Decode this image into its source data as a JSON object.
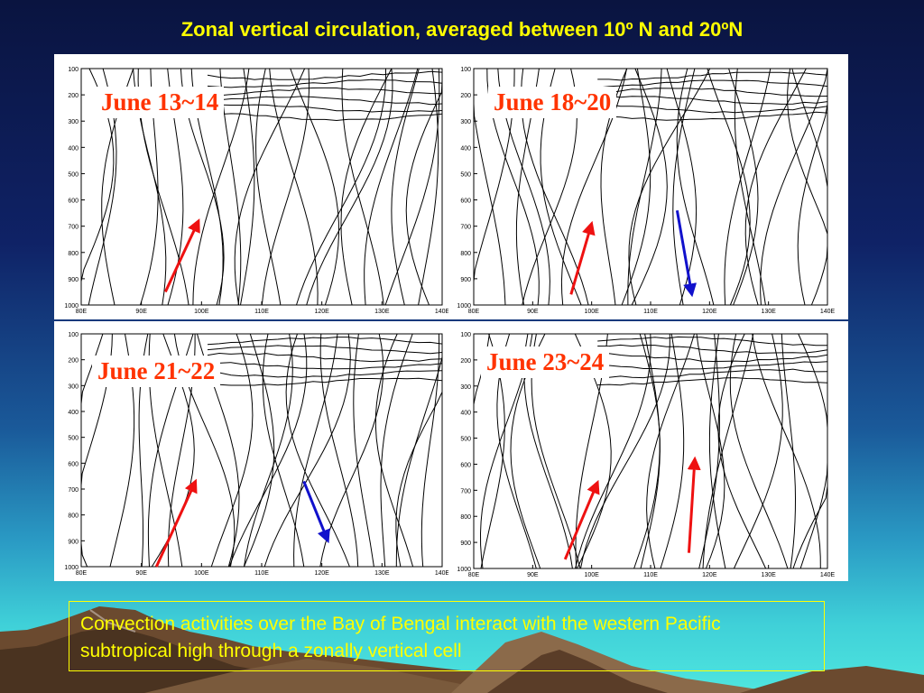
{
  "title": "Zonal vertical circulation, averaged between 10º N and 20ºN",
  "caption": "Convection activities over the Bay of Bengal interact with the western Pacific subtropical high through a zonally vertical cell",
  "axes": {
    "y_ticks": [
      "100",
      "200",
      "300",
      "400",
      "500",
      "600",
      "700",
      "800",
      "900",
      "1000"
    ],
    "x_ticks": [
      "80E",
      "90E",
      "100E",
      "110E",
      "120E",
      "130E",
      "140E"
    ]
  },
  "colors": {
    "title": "#ffff00",
    "label": "#ff3300",
    "red_arrow": "#ee1111",
    "blue_arrow": "#1111cc"
  },
  "panels": [
    {
      "label": "June 13~14",
      "arrows": [
        {
          "color": "red",
          "from": [
            94,
            950
          ],
          "to": [
            99.5,
            680
          ]
        }
      ]
    },
    {
      "label": "June 18~20",
      "arrows": [
        {
          "color": "red",
          "from": [
            96.5,
            960
          ],
          "to": [
            100,
            690
          ]
        },
        {
          "color": "blue",
          "from": [
            114.5,
            640
          ],
          "to": [
            117,
            960
          ]
        }
      ]
    },
    {
      "label": "June 21~22",
      "arrows": [
        {
          "color": "red",
          "from": [
            92.5,
            1000
          ],
          "to": [
            99,
            670
          ]
        },
        {
          "color": "blue",
          "from": [
            117,
            670
          ],
          "to": [
            121,
            900
          ]
        }
      ]
    },
    {
      "label": "June 23~24",
      "arrows": [
        {
          "color": "red",
          "from": [
            95.5,
            965
          ],
          "to": [
            101,
            670
          ]
        },
        {
          "color": "red",
          "from": [
            116.5,
            940
          ],
          "to": [
            117.5,
            580
          ]
        }
      ]
    }
  ]
}
